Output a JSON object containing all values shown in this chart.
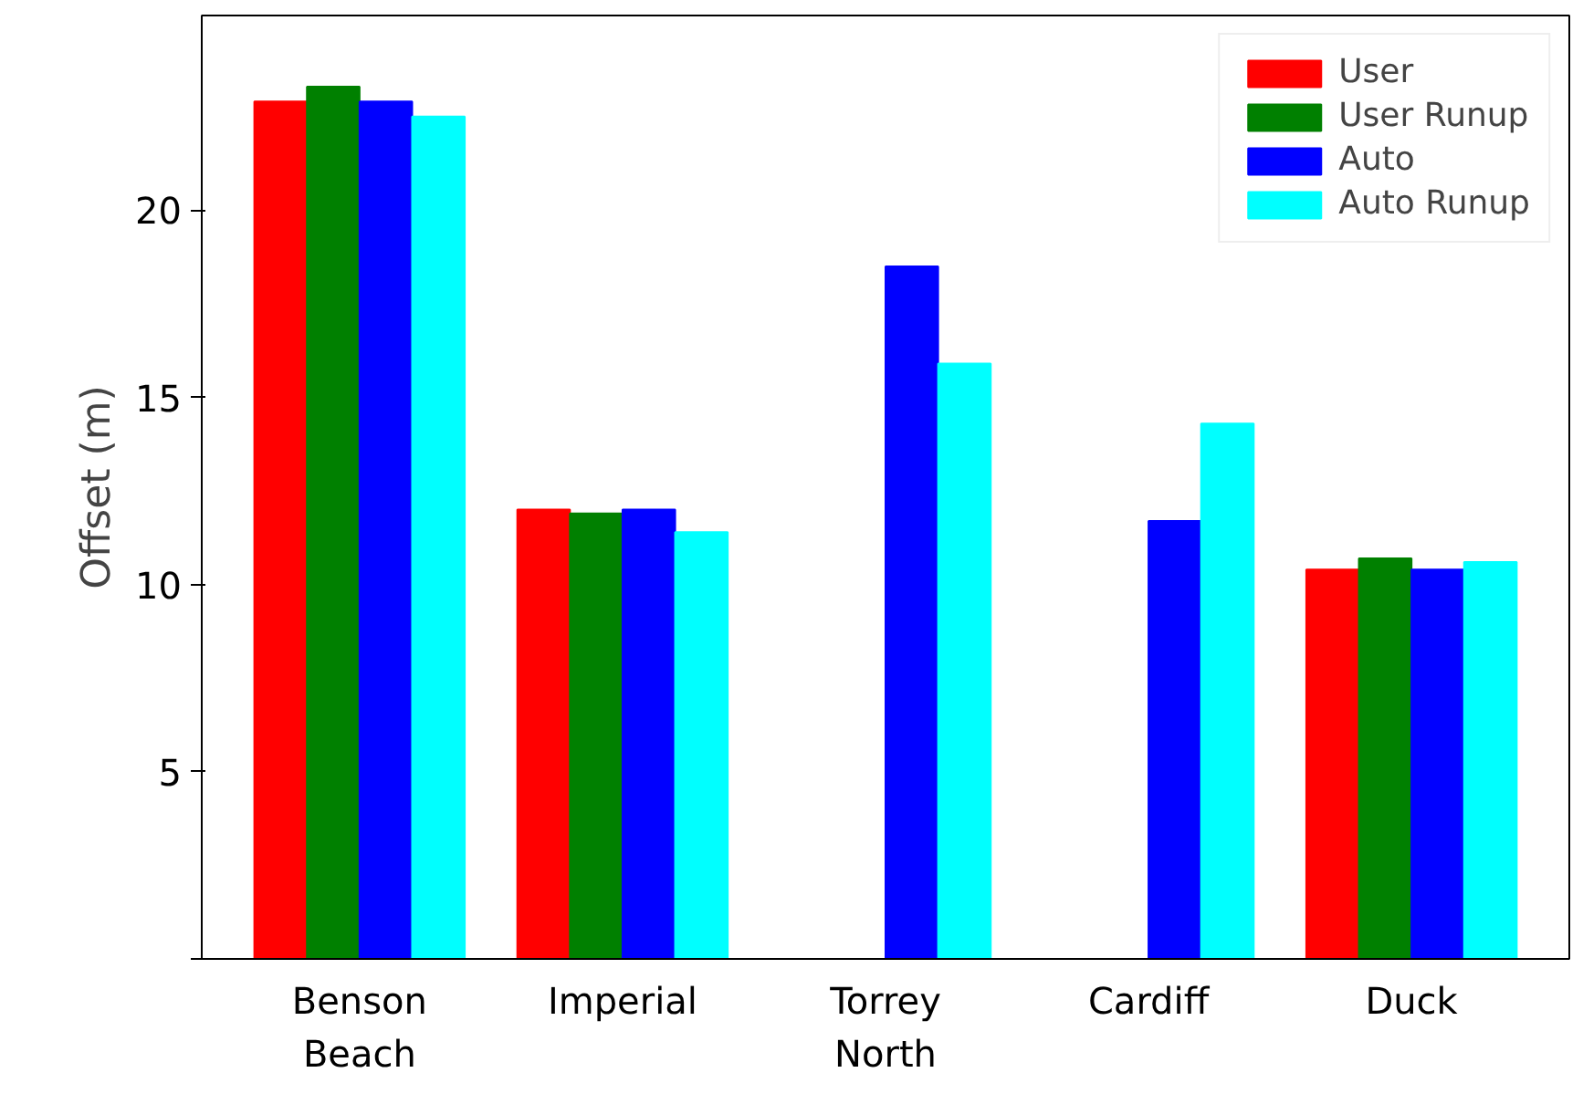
{
  "chart_data": {
    "type": "bar",
    "ylabel": "Offset (m)",
    "categories": [
      "Benson\nBeach",
      "Imperial",
      "Torrey\nNorth",
      "Cardiff",
      "Duck"
    ],
    "series": [
      {
        "name": "User",
        "color": "#ff0000",
        "values": [
          22.9,
          12.0,
          null,
          null,
          10.4
        ]
      },
      {
        "name": "User Runup",
        "color": "#008000",
        "values": [
          23.3,
          11.9,
          null,
          null,
          10.7
        ]
      },
      {
        "name": "Auto",
        "color": "#0000ff",
        "values": [
          22.9,
          12.0,
          18.5,
          11.7,
          10.4
        ]
      },
      {
        "name": "Auto Runup",
        "color": "#00ffff",
        "values": [
          22.5,
          11.4,
          15.9,
          14.3,
          10.6
        ]
      }
    ],
    "ylim": [
      0,
      25.2
    ],
    "yticks": [
      {
        "value": 0,
        "label": null
      },
      5,
      10,
      15,
      20
    ],
    "grid": false,
    "legend": "top right"
  }
}
